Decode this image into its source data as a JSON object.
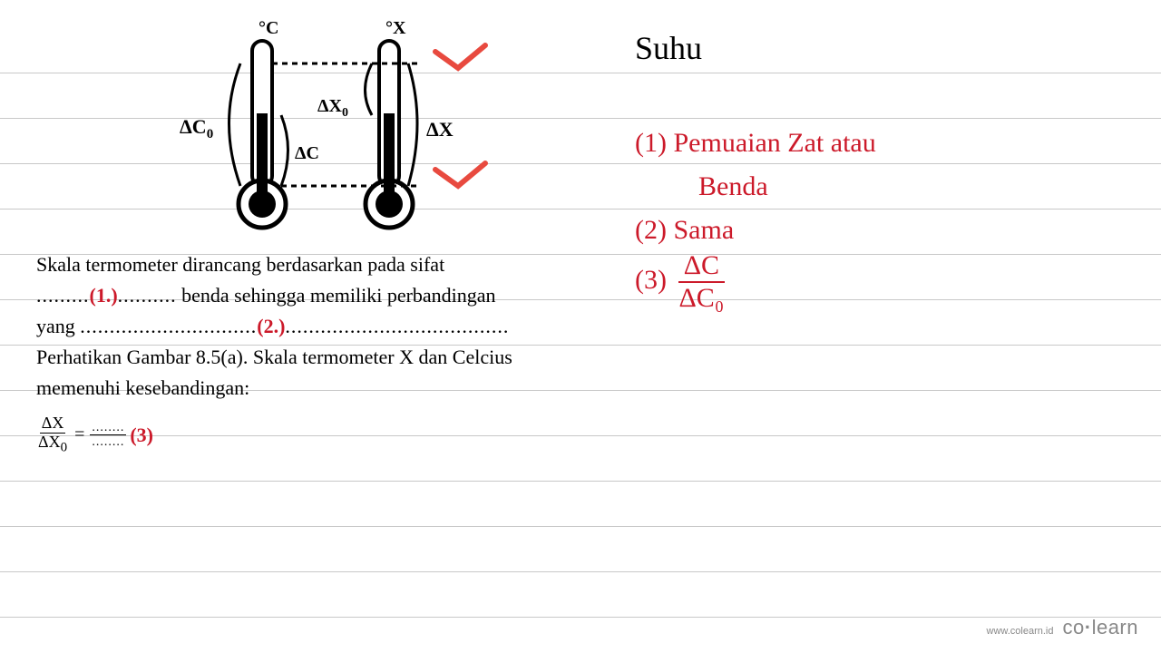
{
  "ruled_line_positions": [
    80,
    130,
    180,
    230,
    280,
    330,
    380,
    430,
    480,
    530,
    580,
    630,
    680
  ],
  "ruled_line_color": "#c8c8c8",
  "diagram": {
    "label_c": "°C",
    "label_x": "°X",
    "delta_c0": "ΔC",
    "delta_c0_sub": "0",
    "delta_x0": "ΔX",
    "delta_x0_sub": "0",
    "delta_c": "ΔC",
    "delta_x": "ΔX",
    "arrow_color": "#e84a3f",
    "stroke_color": "#000000"
  },
  "problem": {
    "line1_a": "Skala termometer dirancang berdasarkan pada sifat",
    "line2_dots_a": ".........",
    "blank1": "(1.)",
    "line2_dots_b": "..........",
    "line2_c": " benda sehingga memiliki perbandingan",
    "line3_a": "yang ",
    "line3_dots_a": "..............................",
    "blank2": "(2.)",
    "line3_dots_b": "......................................",
    "line4": "Perhatikan Gambar 8.5(a). Skala termometer X dan Celcius",
    "line5": "memenuhi kesebandingan:",
    "eq_num": "ΔX",
    "eq_den_a": "ΔX",
    "eq_den_sub": "0",
    "eq_equals": " = ",
    "eq_rhs_num": "........",
    "eq_rhs_den": "........",
    "blank3": "(3)"
  },
  "handwriting": {
    "title": "Suhu",
    "ans1a": "(1) Pemuaian  Zat atau",
    "ans1b": "Benda",
    "ans2": "(2)  Sama",
    "ans3_label": "(3)  ",
    "ans3_num": "ΔC",
    "ans3_den": "ΔC₀",
    "color": "#cc1a2a"
  },
  "footer": {
    "url": "www.colearn.id",
    "logo_a": "co",
    "logo_dot": "·",
    "logo_b": "learn"
  }
}
